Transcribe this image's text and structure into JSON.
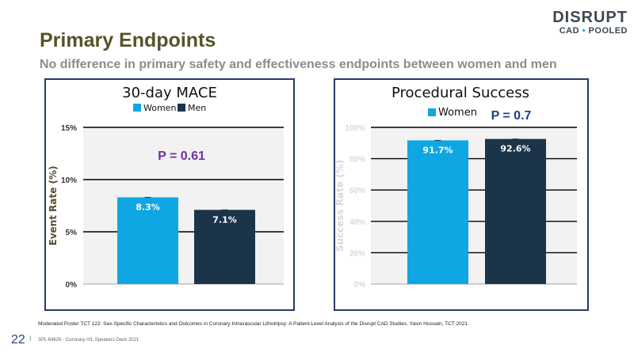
{
  "slide": {
    "title": "Primary Endpoints",
    "subtitle": "No difference in primary safety and effectiveness endpoints between women and men",
    "logo_top": "DISRUPT",
    "logo_left": "CAD",
    "logo_dot": "•",
    "logo_right": "POOLED",
    "footnote": "Moderated Poster TCT 122: Sex-Specific Characteristics and Outcomes in Coronary Intravascular Lithotripsy: A Patient-Level Analysis of the Disrupt CAD Studies. Yasin Hussain, TCT 2021.",
    "page_number": "22",
    "page_separator": "I",
    "deck_label": "SPL 64626 - Coronary IVL Speakers Deck 2021"
  },
  "colors": {
    "women": "#0fa7e3",
    "men": "#1c344a",
    "pvalue_mace": "#7030a0",
    "pvalue_success": "#1f3f8a",
    "panel_border": "#283a6e",
    "axis_label": "#5a4a30"
  },
  "chart_data": [
    {
      "type": "bar",
      "title": "30-day MACE",
      "categories": [
        "Women",
        "Men"
      ],
      "values": [
        8.3,
        7.1
      ],
      "value_labels": [
        "8.3%",
        "7.1%"
      ],
      "legend": [
        "Women",
        "Men"
      ],
      "ylabel": "Event Rate (%)",
      "ylim": [
        0,
        15
      ],
      "yticks": [
        0,
        5,
        10,
        15
      ],
      "ytick_labels": [
        "0%",
        "5%",
        "10%",
        "15%"
      ],
      "annotation": "P = 0.61",
      "grid": true
    },
    {
      "type": "bar",
      "title": "Procedural Success",
      "categories": [
        "Women",
        "Men"
      ],
      "values": [
        91.7,
        92.6
      ],
      "value_labels": [
        "91.7%",
        "92.6%"
      ],
      "legend": [
        "Women"
      ],
      "ylabel": "Success Rate (%)",
      "ylim": [
        0,
        100
      ],
      "yticks": [
        0,
        20,
        40,
        60,
        80,
        100
      ],
      "ytick_labels": [
        "0%",
        "20%",
        "40%",
        "60%",
        "80%",
        "100%"
      ],
      "annotation": "P = 0.7",
      "grid": true
    }
  ]
}
